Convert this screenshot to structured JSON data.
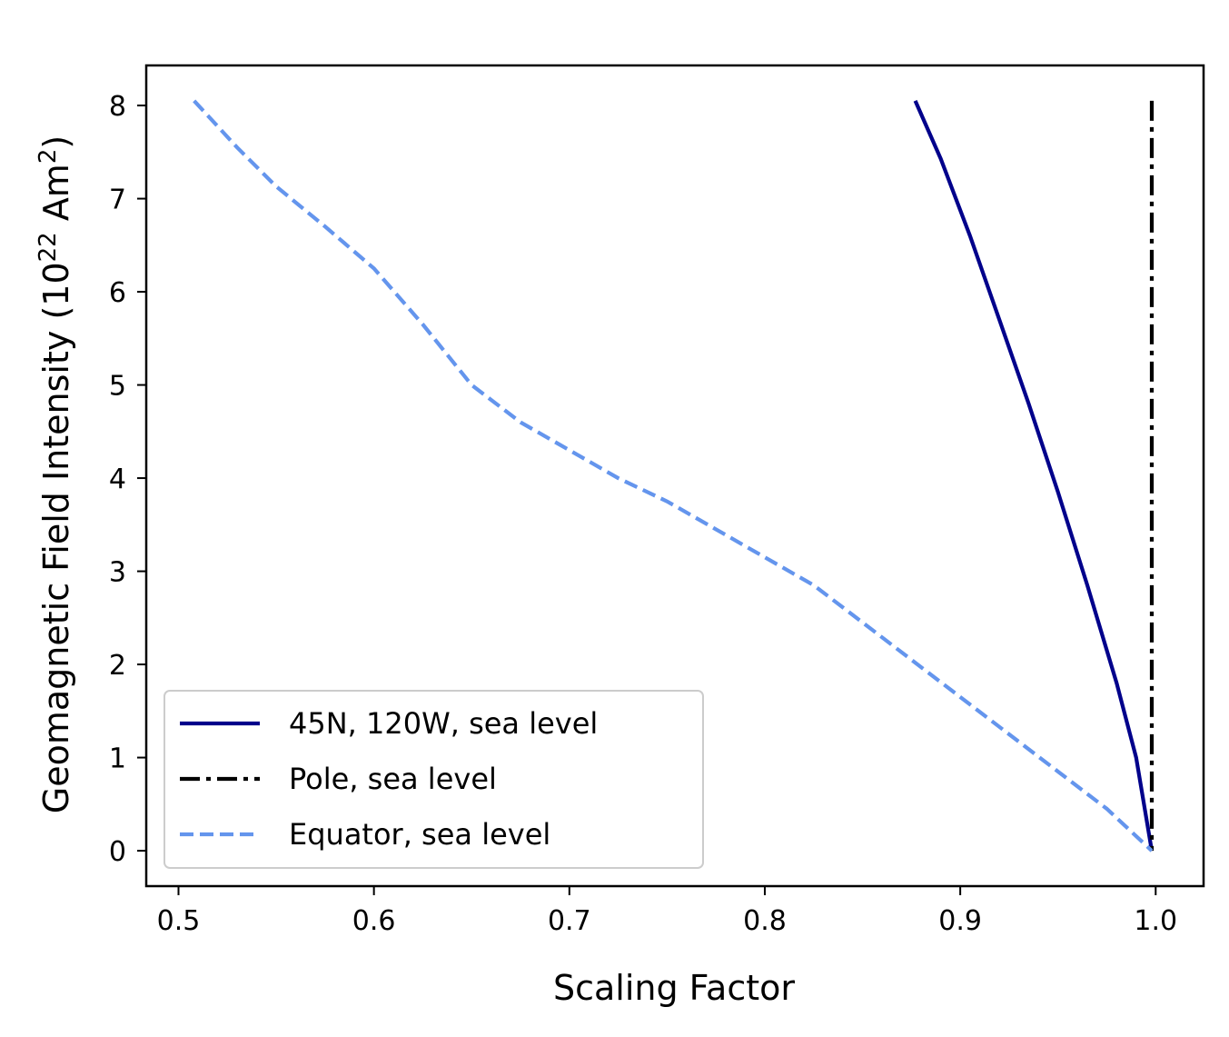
{
  "chart_data": {
    "type": "line",
    "title": "",
    "xlabel": "Scaling Factor",
    "ylabel": {
      "base": "Geomagnetic Field Intensity (10",
      "exp1": "22",
      "mid": " Am",
      "exp2": "2",
      "end": ")"
    },
    "xlim": [
      0.4835,
      1.0245
    ],
    "ylim": [
      -0.38,
      8.43
    ],
    "xticks": [
      0.5,
      0.6,
      0.7,
      0.8,
      0.9,
      1.0
    ],
    "xtick_labels": [
      "0.5",
      "0.6",
      "0.7",
      "0.8",
      "0.9",
      "1.0"
    ],
    "yticks": [
      0,
      1,
      2,
      3,
      4,
      5,
      6,
      7,
      8
    ],
    "ytick_labels": [
      "0",
      "1",
      "2",
      "3",
      "4",
      "5",
      "6",
      "7",
      "8"
    ],
    "grid": false,
    "legend_position": "lower-left",
    "series": [
      {
        "name": "45N, 120W, sea level",
        "color": "#00008b",
        "style": "solid",
        "points": [
          [
            0.877,
            8.05
          ],
          [
            0.89,
            7.43
          ],
          [
            0.905,
            6.6
          ],
          [
            0.92,
            5.7
          ],
          [
            0.935,
            4.8
          ],
          [
            0.95,
            3.85
          ],
          [
            0.965,
            2.85
          ],
          [
            0.98,
            1.8
          ],
          [
            0.99,
            1.0
          ],
          [
            0.998,
            0.0
          ]
        ]
      },
      {
        "name": "Pole, sea level",
        "color": "#000000",
        "style": "dashdot",
        "points": [
          [
            0.998,
            8.05
          ],
          [
            0.998,
            0.0
          ]
        ]
      },
      {
        "name": "Equator, sea level",
        "color": "#6495ed",
        "style": "dashed",
        "points": [
          [
            0.508,
            8.05
          ],
          [
            0.53,
            7.55
          ],
          [
            0.55,
            7.13
          ],
          [
            0.575,
            6.7
          ],
          [
            0.6,
            6.25
          ],
          [
            0.625,
            5.65
          ],
          [
            0.65,
            5.0
          ],
          [
            0.675,
            4.6
          ],
          [
            0.7,
            4.3
          ],
          [
            0.725,
            4.0
          ],
          [
            0.75,
            3.75
          ],
          [
            0.775,
            3.45
          ],
          [
            0.8,
            3.15
          ],
          [
            0.825,
            2.85
          ],
          [
            0.85,
            2.45
          ],
          [
            0.875,
            2.05
          ],
          [
            0.9,
            1.65
          ],
          [
            0.925,
            1.25
          ],
          [
            0.95,
            0.85
          ],
          [
            0.975,
            0.45
          ],
          [
            0.998,
            0.0
          ]
        ]
      }
    ]
  }
}
